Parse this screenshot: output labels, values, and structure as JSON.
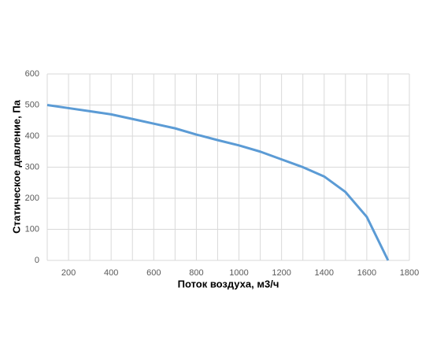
{
  "chart_data": {
    "type": "line",
    "x_label": "Поток воздуха, м3/ч",
    "y_label": "Статическое давление, Па",
    "series": [
      {
        "color": "#5b9bd5",
        "x": [
          100,
          200,
          300,
          400,
          500,
          600,
          700,
          800,
          900,
          1000,
          1100,
          1200,
          1300,
          1400,
          1500,
          1600,
          1700
        ],
        "values": [
          500,
          490,
          480,
          470,
          455,
          440,
          425,
          405,
          387,
          370,
          350,
          325,
          300,
          270,
          220,
          140,
          0
        ]
      }
    ],
    "xlim": [
      100,
      1800
    ],
    "xticks": [
      200,
      400,
      600,
      800,
      1000,
      1200,
      1400,
      1600,
      1800
    ],
    "x_minor_grid": [
      100,
      300,
      500,
      700,
      900,
      1100,
      1300,
      1500,
      1700
    ],
    "ylim": [
      0,
      600
    ],
    "yticks": [
      0,
      100,
      200,
      300,
      400,
      500,
      600
    ],
    "grid": true
  }
}
